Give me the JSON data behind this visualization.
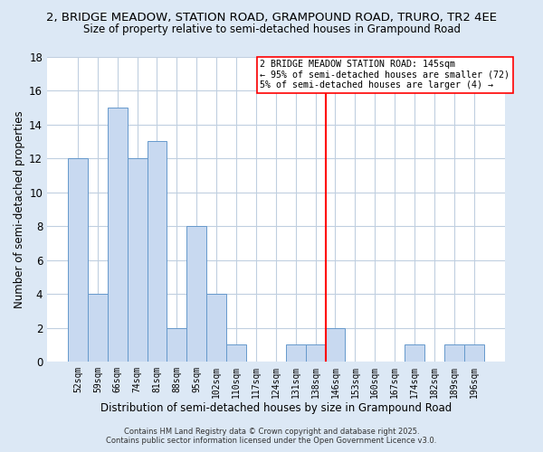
{
  "title": "2, BRIDGE MEADOW, STATION ROAD, GRAMPOUND ROAD, TRURO, TR2 4EE",
  "subtitle": "Size of property relative to semi-detached houses in Grampound Road",
  "xlabel": "Distribution of semi-detached houses by size in Grampound Road",
  "ylabel": "Number of semi-detached properties",
  "bar_labels": [
    "52sqm",
    "59sqm",
    "66sqm",
    "74sqm",
    "81sqm",
    "88sqm",
    "95sqm",
    "102sqm",
    "110sqm",
    "117sqm",
    "124sqm",
    "131sqm",
    "138sqm",
    "146sqm",
    "153sqm",
    "160sqm",
    "167sqm",
    "174sqm",
    "182sqm",
    "189sqm",
    "196sqm"
  ],
  "bar_values": [
    12,
    4,
    15,
    12,
    13,
    2,
    8,
    4,
    1,
    0,
    0,
    1,
    1,
    2,
    0,
    0,
    0,
    1,
    0,
    1,
    1
  ],
  "bar_color": "#c8d9f0",
  "bar_edge_color": "#6699cc",
  "vline_color": "red",
  "vline_bar_index": 13,
  "ylim": [
    0,
    18
  ],
  "yticks": [
    0,
    2,
    4,
    6,
    8,
    10,
    12,
    14,
    16,
    18
  ],
  "annotation_title": "2 BRIDGE MEADOW STATION ROAD: 145sqm",
  "annotation_line1": "← 95% of semi-detached houses are smaller (72)",
  "annotation_line2": "5% of semi-detached houses are larger (4) →",
  "plot_bg_color": "#ffffff",
  "fig_bg_color": "#dce8f5",
  "grid_color": "#c0cfe0",
  "title_fontsize": 9.5,
  "subtitle_fontsize": 8.5,
  "footer1": "Contains HM Land Registry data © Crown copyright and database right 2025.",
  "footer2": "Contains public sector information licensed under the Open Government Licence v3.0."
}
